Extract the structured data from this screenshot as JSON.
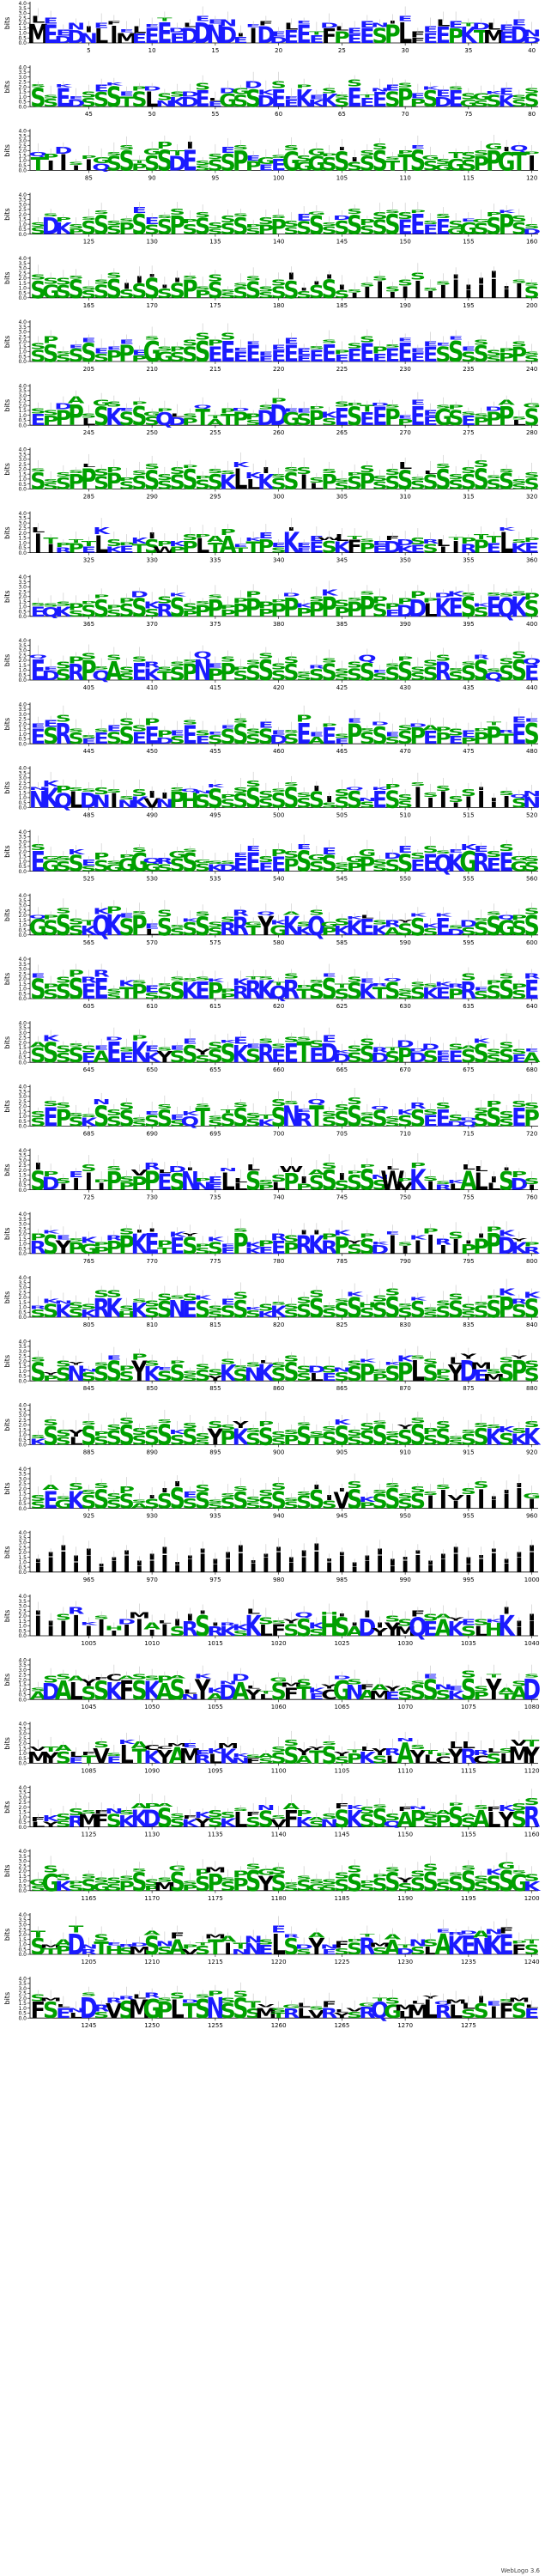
{
  "chart_data": {
    "type": "sequence-logo",
    "y_axis_label": "bits",
    "y_ticks": [
      "0.0",
      "0.5",
      "1.0",
      "1.5",
      "2.0",
      "2.5",
      "3.0",
      "3.5",
      "4.0"
    ],
    "ylim": [
      0,
      4.3
    ],
    "residue_colors": {
      "hydrophilic": "#1a1aff",
      "neutral": "#00a000",
      "hydrophobic": "#000000"
    },
    "rows": [
      {
        "start": 1,
        "end": 40,
        "x_ticks": [
          5,
          10,
          15,
          20,
          25,
          30,
          35,
          40
        ],
        "letters": "MEDDNLIMEEEEDDNDEIDDEEEFPEESPLFEEPKT"
      },
      {
        "start": 41,
        "end": 80,
        "x_ticks": [
          45,
          50,
          55,
          60,
          65,
          70,
          75,
          80
        ],
        "letters": "SSEDSSSTSLNKDEEGSSDEEKKKSEEESPPSDEGSSK"
      },
      {
        "start": 81,
        "end": 120,
        "x_ticks": [
          85,
          90,
          95,
          100,
          105,
          110,
          115,
          120
        ],
        "letters": "TIIIIQSSPSSDESSSPPEEGGGSSSSSTTSSGGSPPG"
      },
      {
        "start": 121,
        "end": 160,
        "x_ticks": [
          125,
          130,
          135,
          140,
          145,
          150,
          155,
          160
        ],
        "letters": "SDKPSSSPSSSPSSSSSSPPSSSSSSSSSEEEEGGSSP"
      },
      {
        "start": 161,
        "end": 200,
        "x_ticks": [
          165,
          170,
          175,
          180,
          185,
          190,
          195,
          200
        ],
        "letters": "SGSSSSSSSSSSPPSSSSSSSSSSSIIIIIIIIIIIIII"
      },
      {
        "start": 201,
        "end": 240,
        "x_ticks": [
          205,
          210,
          215,
          220,
          225,
          230,
          235,
          240
        ],
        "letters": "SSSSSSPPPGGSSSEEEEEEEEEEEEEEEEEESSSSSPP"
      },
      {
        "start": 241,
        "end": 280,
        "x_ticks": [
          245,
          250,
          255,
          260,
          265,
          270,
          275,
          280
        ],
        "letters": "EPPPLSKSSSQDPTATPSDDGSPSESEEPPEEGS"
      },
      {
        "start": 281,
        "end": 320,
        "x_ticks": [
          285,
          290,
          295,
          300,
          305,
          310,
          315,
          320
        ],
        "letters": "SSSPPSPSSSSSSSSKLLKSSILPSSPSSSSSSSSSSS"
      },
      {
        "start": 321,
        "end": 360,
        "x_ticks": [
          325,
          330,
          335,
          340,
          345,
          350,
          355,
          360
        ],
        "letters": "IIRPELKETSWPPLTATTPSKEESKFPEDKES"
      },
      {
        "start": 361,
        "end": 400,
        "x_ticks": [
          365,
          370,
          375,
          380,
          385,
          390,
          395,
          400
        ],
        "letters": "EQKSSSSSSSRSPPPPPPPPPPPPPPPSEDDLKESS"
      },
      {
        "start": 401,
        "end": 440,
        "x_ticks": [
          405,
          410,
          415,
          420,
          425,
          430,
          435,
          440
        ],
        "letters": "EDSRPQASEKTSPNPPSSSSSSSSSSSSSSSSRSSSQSS"
      },
      {
        "start": 441,
        "end": 480,
        "x_ticks": [
          445,
          450,
          455,
          460,
          465,
          470,
          475,
          480
        ],
        "letters": "ESRSEESSEEDSEESSSSSDSEAEEPSSSSPEPEPPPT"
      },
      {
        "start": 481,
        "end": 520,
        "x_ticks": [
          485,
          490,
          495,
          500,
          505,
          510,
          515,
          520
        ],
        "letters": "NKQLDNINKVNPHSSSSSSSSSSSSSSESSIIIIIIIIS"
      },
      {
        "start": 521,
        "end": 560,
        "x_ticks": [
          525,
          530,
          535,
          540,
          545,
          550,
          555,
          560
        ],
        "letters": "EGSSSSGGGGSSSSKDEEEEPSSSSPPSSSEEQKGRE"
      },
      {
        "start": 561,
        "end": 600,
        "x_ticks": [
          565,
          570,
          575,
          580,
          585,
          590,
          595,
          600
        ],
        "letters": "GSSSKQKSPLSSSSSRRTYGKKQPKKEKASSSEDSSS"
      },
      {
        "start": 601,
        "end": 640,
        "x_ticks": [
          605,
          610,
          615,
          620,
          625,
          630,
          635,
          640
        ],
        "letters": "SSSSEESTPSSSKEPPRRKQRTSSSSKTSSSKEPR"
      },
      {
        "start": 641,
        "end": 680,
        "x_ticks": [
          645,
          650,
          655,
          660,
          665,
          670,
          675,
          680
        ],
        "letters": "SSSSEAEEKKYSSSSSKSREETEDDSSDSPDSEE"
      },
      {
        "start": 681,
        "end": 720,
        "x_ticks": [
          685,
          690,
          695,
          700,
          705,
          710,
          715,
          720
        ],
        "letters": "SEPSKSSSSSSSQTSSSSKSNRTSSSSSSSSEEDQSS"
      },
      {
        "start": 721,
        "end": 760,
        "x_ticks": [
          725,
          730,
          735,
          740,
          745,
          750,
          755,
          760
        ],
        "letters": "SDIIIIPPPPESNNELLSPLPPSSSSSSWVKIRLALL"
      },
      {
        "start": 761,
        "end": 800,
        "x_ticks": [
          765,
          770,
          775,
          780,
          785,
          790,
          795,
          800
        ],
        "letters": "RSYPGPPPKETESSSEPKEEPRKRPSSDIIIIIIPPPDK"
      },
      {
        "start": 801,
        "end": 840,
        "x_ticks": [
          805,
          810,
          815,
          820,
          825,
          830,
          835,
          840
        ],
        "letters": "SSKSKRKHKSSNESSSSSKKSSSSSSSSSSSSSSSSSP"
      },
      {
        "start": 841,
        "end": 880,
        "x_ticks": [
          845,
          850,
          855,
          860,
          865,
          870,
          875,
          880
        ],
        "letters": "SPSNSSSSYKSSSSYKSNKSSSLESSPPSPLSSYDEM"
      },
      {
        "start": 881,
        "end": 920,
        "x_ticks": [
          885,
          890,
          895,
          900,
          905,
          910,
          915,
          920
        ],
        "letters": "KSSLSSSSSSSSSSYPKSSSPSTSSSSSSSSSSSSSKSK"
      },
      {
        "start": 921,
        "end": 960,
        "x_ticks": [
          925,
          930,
          935,
          940,
          945,
          950,
          955,
          960
        ],
        "letters": "SEGKSSSSASSSSSSSSSSSSSSSVSPSSSSIIIIIIIII"
      },
      {
        "start": 961,
        "end": 1000,
        "x_ticks": [
          965,
          970,
          975,
          980,
          985,
          990,
          995,
          1000
        ],
        "letters": "IIIIIIIIIIIIIIIIIIIIIIIIIIIIIIIIIIIIIII"
      },
      {
        "start": 1001,
        "end": 1040,
        "x_ticks": [
          1005,
          1010,
          1015,
          1020,
          1025,
          1030,
          1035,
          1040
        ],
        "letters": "IIIIIIIIIIISRSRKSKLFSSSHSADYYMQEAKSLHK"
      },
      {
        "start": 1041,
        "end": 1080,
        "x_ticks": [
          1045,
          1050,
          1055,
          1060,
          1065,
          1070,
          1075,
          1080
        ],
        "letters": "ADALSSKFSKASNYADAYLSFTECGNAMESSSSKSPYT"
      },
      {
        "start": 1081,
        "end": 1120,
        "x_ticks": [
          1085,
          1090,
          1095,
          1100,
          1105,
          1110,
          1115,
          1120
        ],
        "letters": "MYSETVELTKYAMRLKNFSSSATSSPKSLAYLCYRCSL"
      },
      {
        "start": 1121,
        "end": 1160,
        "x_ticks": [
          1125,
          1130,
          1135,
          1140,
          1145,
          1150,
          1155,
          1160
        ],
        "letters": "LYSRMFSKKDSSKYSKLSSVFKSNSKSSQAPSPSSA"
      },
      {
        "start": 1161,
        "end": 1200,
        "x_ticks": [
          1165,
          1170,
          1175,
          1180,
          1185,
          1190,
          1195,
          1200
        ],
        "letters": "SGKSSGSPSPMSPSPSPSYSSSGSSSSSSSSSSSSSS"
      },
      {
        "start": 1201,
        "end": 1240,
        "x_ticks": [
          1205,
          1210,
          1215,
          1220,
          1225,
          1230,
          1235,
          1240
        ],
        "letters": "STPDRTHSMSSAVSTINNELSSYESSRSADSLAKENKEF"
      },
      {
        "start": 1241,
        "end": 1280,
        "x_ticks": [
          1245,
          1250,
          1255,
          1260,
          1265,
          1270,
          1275
        ],
        "letters": "FSELDSVSMGPLTSNSSSMTRLVRYSRQGLMLRLSSI"
      }
    ],
    "footer": "WebLogo 3.6"
  }
}
